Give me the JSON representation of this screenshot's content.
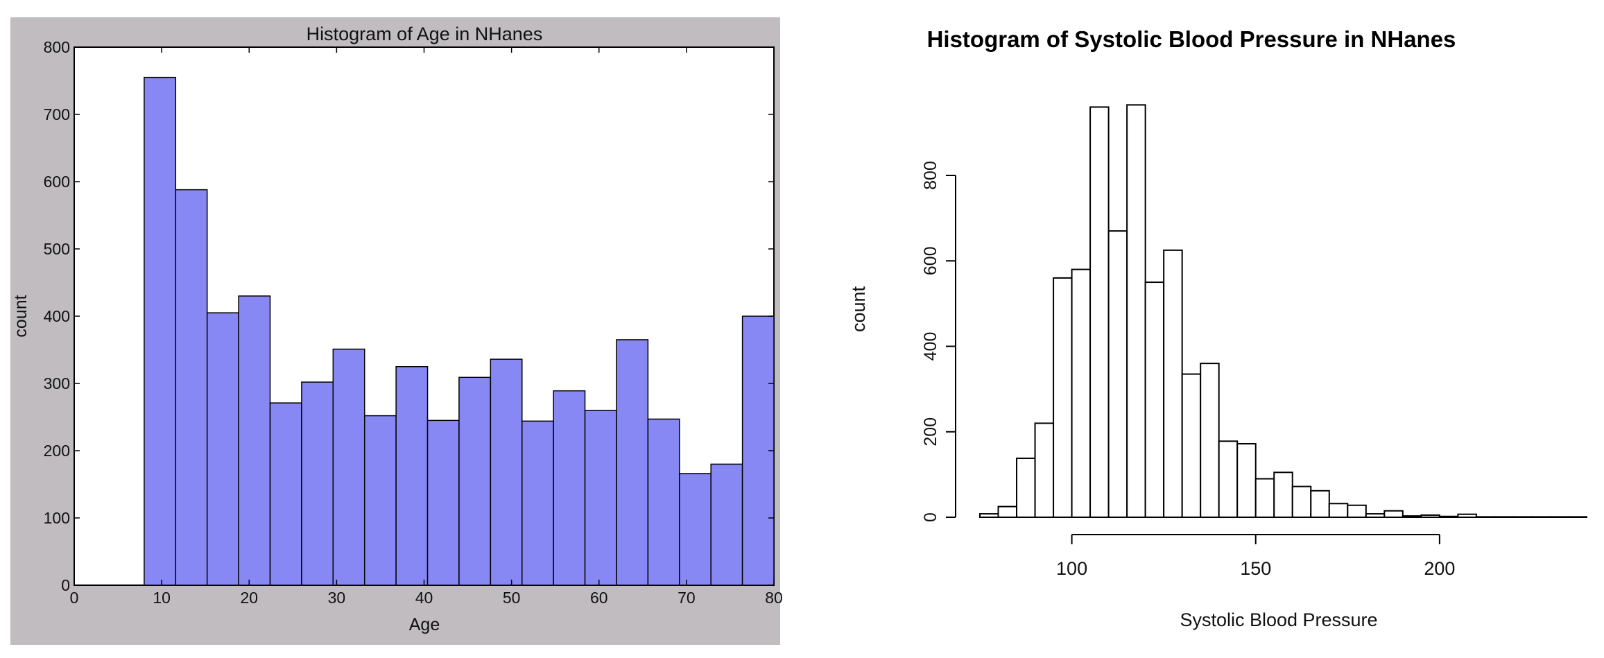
{
  "chart_data": [
    {
      "type": "bar",
      "title": "Histogram of Age in NHanes",
      "xlabel": "Age",
      "ylabel": "count",
      "xlim": [
        0,
        80
      ],
      "ylim": [
        0,
        800
      ],
      "xticks": [
        0,
        10,
        20,
        30,
        40,
        50,
        60,
        70,
        80
      ],
      "yticks": [
        0,
        100,
        200,
        300,
        400,
        500,
        600,
        700,
        800
      ],
      "grid": false,
      "background": "#c0bcc0",
      "bar_color": "#8888f4",
      "bins": [
        {
          "x0": 8.0,
          "x1": 11.6,
          "count": 755
        },
        {
          "x0": 11.6,
          "x1": 15.2,
          "count": 588
        },
        {
          "x0": 15.2,
          "x1": 18.8,
          "count": 405
        },
        {
          "x0": 18.8,
          "x1": 22.4,
          "count": 430
        },
        {
          "x0": 22.4,
          "x1": 26.0,
          "count": 271
        },
        {
          "x0": 26.0,
          "x1": 29.6,
          "count": 302
        },
        {
          "x0": 29.6,
          "x1": 33.2,
          "count": 351
        },
        {
          "x0": 33.2,
          "x1": 36.8,
          "count": 252
        },
        {
          "x0": 36.8,
          "x1": 40.4,
          "count": 325
        },
        {
          "x0": 40.4,
          "x1": 44.0,
          "count": 245
        },
        {
          "x0": 44.0,
          "x1": 47.6,
          "count": 309
        },
        {
          "x0": 47.6,
          "x1": 51.2,
          "count": 336
        },
        {
          "x0": 51.2,
          "x1": 54.8,
          "count": 244
        },
        {
          "x0": 54.8,
          "x1": 58.4,
          "count": 289
        },
        {
          "x0": 58.4,
          "x1": 62.0,
          "count": 260
        },
        {
          "x0": 62.0,
          "x1": 65.6,
          "count": 365
        },
        {
          "x0": 65.6,
          "x1": 69.2,
          "count": 247
        },
        {
          "x0": 69.2,
          "x1": 72.8,
          "count": 166
        },
        {
          "x0": 72.8,
          "x1": 76.4,
          "count": 180
        },
        {
          "x0": 76.4,
          "x1": 80.0,
          "count": 400
        }
      ]
    },
    {
      "type": "bar",
      "title": "Histogram of Systolic Blood Pressure in NHanes",
      "xlabel": "Systolic Blood Pressure",
      "ylabel": "count",
      "xticks": [
        100,
        150,
        200
      ],
      "yticks": [
        0,
        200,
        400,
        600,
        800
      ],
      "grid": false,
      "bar_color": "#ffffff",
      "bins": [
        {
          "x0": 75,
          "x1": 80,
          "count": 8
        },
        {
          "x0": 80,
          "x1": 85,
          "count": 25
        },
        {
          "x0": 85,
          "x1": 90,
          "count": 138
        },
        {
          "x0": 90,
          "x1": 95,
          "count": 220
        },
        {
          "x0": 95,
          "x1": 100,
          "count": 560
        },
        {
          "x0": 100,
          "x1": 105,
          "count": 580
        },
        {
          "x0": 105,
          "x1": 110,
          "count": 960
        },
        {
          "x0": 110,
          "x1": 115,
          "count": 670
        },
        {
          "x0": 115,
          "x1": 120,
          "count": 965
        },
        {
          "x0": 120,
          "x1": 125,
          "count": 550
        },
        {
          "x0": 125,
          "x1": 130,
          "count": 625
        },
        {
          "x0": 130,
          "x1": 135,
          "count": 335
        },
        {
          "x0": 135,
          "x1": 140,
          "count": 360
        },
        {
          "x0": 140,
          "x1": 145,
          "count": 178
        },
        {
          "x0": 145,
          "x1": 150,
          "count": 172
        },
        {
          "x0": 150,
          "x1": 155,
          "count": 90
        },
        {
          "x0": 155,
          "x1": 160,
          "count": 105
        },
        {
          "x0": 160,
          "x1": 165,
          "count": 72
        },
        {
          "x0": 165,
          "x1": 170,
          "count": 62
        },
        {
          "x0": 170,
          "x1": 175,
          "count": 32
        },
        {
          "x0": 175,
          "x1": 180,
          "count": 28
        },
        {
          "x0": 180,
          "x1": 185,
          "count": 8
        },
        {
          "x0": 185,
          "x1": 190,
          "count": 15
        },
        {
          "x0": 190,
          "x1": 195,
          "count": 3
        },
        {
          "x0": 195,
          "x1": 200,
          "count": 5
        },
        {
          "x0": 200,
          "x1": 205,
          "count": 2
        },
        {
          "x0": 205,
          "x1": 210,
          "count": 7
        },
        {
          "x0": 210,
          "x1": 215,
          "count": 1
        },
        {
          "x0": 215,
          "x1": 220,
          "count": 1
        },
        {
          "x0": 220,
          "x1": 225,
          "count": 1
        },
        {
          "x0": 225,
          "x1": 230,
          "count": 1
        },
        {
          "x0": 230,
          "x1": 235,
          "count": 1
        },
        {
          "x0": 235,
          "x1": 240,
          "count": 1
        }
      ]
    }
  ]
}
